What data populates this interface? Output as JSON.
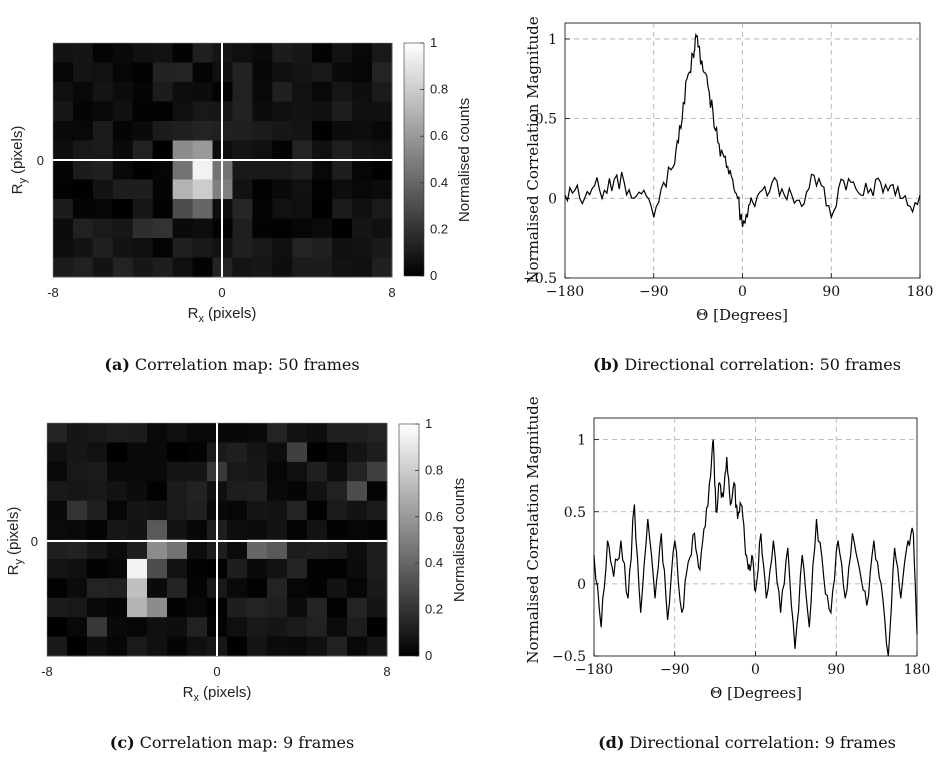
{
  "chart_data": [
    {
      "type": "heatmap",
      "id": "a",
      "caption_label": "(a)",
      "caption_text": "Correlation map: 50 frames",
      "xlabel_main": "R",
      "xlabel_sub": "x",
      "xlabel_unit": "(pixels)",
      "ylabel_main": "R",
      "ylabel_sub": "y",
      "ylabel_unit": "(pixels)",
      "xticks": [
        "-8",
        "0",
        "8"
      ],
      "yticks": [
        "0"
      ],
      "xlim": [
        -8,
        8
      ],
      "colorbar_label": "Normalised counts",
      "colorbar_ticks": [
        "0",
        "0.2",
        "0.4",
        "0.6",
        "0.8",
        "1"
      ],
      "grid_cols": 17,
      "grid_rows": 12,
      "bright_cells": [
        {
          "col": 6,
          "row": 5,
          "value": 0.55
        },
        {
          "col": 7,
          "row": 5,
          "value": 0.6
        },
        {
          "col": 7,
          "row": 6,
          "value": 0.95
        },
        {
          "col": 8,
          "row": 6,
          "value": 0.45
        },
        {
          "col": 6,
          "row": 6,
          "value": 0.45
        },
        {
          "col": 6,
          "row": 7,
          "value": 0.7
        },
        {
          "col": 7,
          "row": 7,
          "value": 0.8
        },
        {
          "col": 8,
          "row": 7,
          "value": 0.5
        },
        {
          "col": 7,
          "row": 8,
          "value": 0.4
        },
        {
          "col": 6,
          "row": 8,
          "value": 0.3
        },
        {
          "col": 5,
          "row": 9,
          "value": 0.2
        },
        {
          "col": 4,
          "row": 9,
          "value": 0.18
        },
        {
          "col": 9,
          "row": 8,
          "value": 0.15
        }
      ]
    },
    {
      "type": "line",
      "id": "b",
      "caption_label": "(b)",
      "caption_text": "Directional correlation: 50 frames",
      "xlabel": "Θ [Degrees]",
      "ylabel": "Normalised Correlation Magnitude",
      "xlim": [
        -180,
        180
      ],
      "ylim": [
        -0.5,
        1.1
      ],
      "xticks": [
        "−180",
        "−90",
        "0",
        "90",
        "180"
      ],
      "yticks": [
        "−0.5",
        "0",
        "0.5",
        "1"
      ],
      "grid": true,
      "x": [
        -180,
        -170,
        -160,
        -150,
        -140,
        -130,
        -120,
        -110,
        -100,
        -90,
        -80,
        -70,
        -65,
        -60,
        -55,
        -50,
        -48,
        -45,
        -40,
        -35,
        -30,
        -25,
        -20,
        -15,
        -10,
        -5,
        0,
        5,
        10,
        20,
        30,
        40,
        50,
        60,
        70,
        80,
        90,
        100,
        110,
        120,
        130,
        140,
        150,
        160,
        170,
        180
      ],
      "y": [
        0.02,
        0.05,
        0.0,
        0.08,
        0.05,
        0.12,
        0.1,
        0.0,
        0.05,
        -0.12,
        0.1,
        0.2,
        0.35,
        0.6,
        0.78,
        0.9,
        1.0,
        0.95,
        0.8,
        0.7,
        0.55,
        0.35,
        0.28,
        0.2,
        0.12,
        0.0,
        -0.18,
        -0.12,
        -0.02,
        0.05,
        0.1,
        0.06,
        0.02,
        -0.05,
        0.15,
        0.08,
        -0.12,
        0.12,
        0.1,
        0.02,
        0.06,
        0.1,
        0.08,
        0.0,
        -0.05,
        0.02
      ]
    },
    {
      "type": "heatmap",
      "id": "c",
      "caption_label": "(c)",
      "caption_text": "Correlation map: 9 frames",
      "xlabel_main": "R",
      "xlabel_sub": "x",
      "xlabel_unit": "(pixels)",
      "ylabel_main": "R",
      "ylabel_sub": "y",
      "ylabel_unit": "(pixels)",
      "xticks": [
        "-8",
        "0",
        "8"
      ],
      "yticks": [
        "0"
      ],
      "xlim": [
        -8,
        8
      ],
      "colorbar_label": "Normalised counts",
      "colorbar_ticks": [
        "0",
        "0.2",
        "0.4",
        "0.6",
        "0.8",
        "1"
      ],
      "grid_cols": 17,
      "grid_rows": 12,
      "bright_cells": [
        {
          "col": 4,
          "row": 8,
          "value": 0.75
        },
        {
          "col": 4,
          "row": 9,
          "value": 0.7
        },
        {
          "col": 5,
          "row": 9,
          "value": 0.55
        },
        {
          "col": 4,
          "row": 7,
          "value": 0.95
        },
        {
          "col": 5,
          "row": 7,
          "value": 0.3
        },
        {
          "col": 5,
          "row": 6,
          "value": 0.55
        },
        {
          "col": 6,
          "row": 6,
          "value": 0.45
        },
        {
          "col": 5,
          "row": 5,
          "value": 0.35
        },
        {
          "col": 10,
          "row": 6,
          "value": 0.4
        },
        {
          "col": 11,
          "row": 6,
          "value": 0.35
        },
        {
          "col": 15,
          "row": 3,
          "value": 0.3
        },
        {
          "col": 16,
          "row": 2,
          "value": 0.25
        },
        {
          "col": 1,
          "row": 4,
          "value": 0.2
        },
        {
          "col": 12,
          "row": 1,
          "value": 0.25
        },
        {
          "col": 8,
          "row": 2,
          "value": 0.22
        },
        {
          "col": 2,
          "row": 10,
          "value": 0.22
        }
      ]
    },
    {
      "type": "line",
      "id": "d",
      "caption_label": "(d)",
      "caption_text": "Directional correlation: 9 frames",
      "xlabel": "Θ [Degrees]",
      "ylabel": "Normalised Correlation Magnitude",
      "xlim": [
        -180,
        180
      ],
      "ylim": [
        -0.5,
        1.15
      ],
      "xticks": [
        "−180",
        "−90",
        "0",
        "90",
        "180"
      ],
      "yticks": [
        "−0.5",
        "0",
        "0.5",
        "1"
      ],
      "grid": true,
      "x": [
        -180,
        -172,
        -165,
        -158,
        -150,
        -142,
        -135,
        -128,
        -120,
        -112,
        -105,
        -98,
        -90,
        -82,
        -75,
        -68,
        -62,
        -56,
        -50,
        -47,
        -44,
        -40,
        -36,
        -32,
        -28,
        -24,
        -20,
        -16,
        -12,
        -8,
        -4,
        0,
        6,
        12,
        20,
        28,
        36,
        44,
        52,
        60,
        68,
        76,
        84,
        92,
        100,
        108,
        116,
        124,
        132,
        140,
        148,
        155,
        162,
        170,
        176,
        180
      ],
      "y": [
        0.2,
        -0.3,
        0.3,
        0.05,
        0.3,
        -0.1,
        0.55,
        -0.2,
        0.45,
        -0.1,
        0.35,
        -0.25,
        0.3,
        -0.2,
        0.15,
        0.35,
        0.1,
        0.4,
        0.75,
        1.0,
        0.5,
        0.7,
        0.6,
        0.88,
        0.55,
        0.7,
        0.45,
        0.55,
        0.3,
        0.1,
        0.2,
        -0.05,
        0.35,
        -0.1,
        0.3,
        -0.2,
        0.25,
        -0.45,
        0.2,
        -0.3,
        0.45,
        0.05,
        -0.2,
        0.3,
        -0.1,
        0.35,
        0.1,
        -0.15,
        0.3,
        0.0,
        -0.5,
        0.25,
        -0.1,
        0.3,
        0.35,
        -0.35
      ]
    }
  ]
}
